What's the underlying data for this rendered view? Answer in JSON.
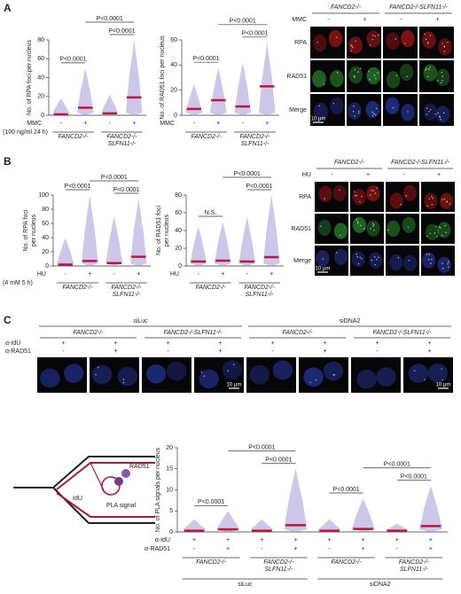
{
  "panels": {
    "A": {
      "label": "A",
      "image_header": {
        "groups": [
          "FANCD2-/-",
          "FANCD2-/-SLFN11-/-"
        ],
        "treatment": "MMC",
        "signs": [
          "-",
          "+",
          "-",
          "+"
        ]
      },
      "rows": [
        "RPA",
        "RAD51",
        "Merge"
      ],
      "scale": "10 µm"
    },
    "B": {
      "label": "B",
      "image_header": {
        "groups": [
          "FANCD2-/-",
          "FANCD2-/-SLFN11-/-"
        ],
        "treatment": "HU",
        "signs": [
          "-",
          "+",
          "-",
          "+"
        ]
      },
      "rows": [
        "RPA",
        "RAD51",
        "Merge"
      ],
      "scale": "10 µm"
    },
    "C": {
      "label": "C",
      "header": {
        "super_groups": [
          "siLuc",
          "siDNA2"
        ],
        "groups": [
          "FANCD2-/-",
          "FANCD2-/-SLFN11-/-",
          "FANCD2-/-",
          "FANCD2-/-SLFN11-/-"
        ],
        "rows": [
          {
            "name": "α-IdU",
            "values": [
              "+",
              "+",
              "+",
              "+",
              "+",
              "+",
              "+",
              "+"
            ]
          },
          {
            "name": "α-RAD51",
            "values": [
              "-",
              "+",
              "-",
              "+",
              "-",
              "+",
              "-",
              "+"
            ]
          }
        ]
      },
      "scale": "10 µm",
      "diagram": {
        "rad51": "RAD51",
        "idu": "IdU",
        "pla": "PLA signal"
      }
    }
  },
  "chart_data": [
    {
      "type": "strip",
      "y_label": [
        "No. of RPA foci per nucleus"
      ],
      "ylim": [
        0,
        80
      ],
      "yticks": [
        0,
        20,
        40,
        60,
        80
      ],
      "rows": [
        {
          "name": "MMC",
          "values": [
            "-",
            "+",
            "-",
            "+"
          ]
        }
      ],
      "note": "(100 ng/ml 24 h)",
      "groups": [
        [
          "FANCD2-/-"
        ],
        [
          "FANCD2-/-",
          "SLFN11-/-"
        ]
      ],
      "means": [
        1,
        8,
        2,
        19
      ],
      "max_values": [
        18,
        50,
        22,
        80
      ],
      "comparisons": [
        {
          "groups": [
            0,
            1
          ],
          "label": "P<0.0001"
        },
        {
          "groups": [
            2,
            3
          ],
          "label": "P<0.0001"
        },
        {
          "groups": [
            1,
            3
          ],
          "label": "P<0.0001"
        }
      ]
    },
    {
      "type": "strip",
      "y_label": [
        "No. of RAD51 foci per nucleus"
      ],
      "ylim": [
        0,
        60
      ],
      "yticks": [
        0,
        20,
        40,
        60
      ],
      "rows": [
        {
          "name": "MMC",
          "values": [
            "-",
            "+",
            "-",
            "+"
          ]
        }
      ],
      "groups": [
        [
          "FANCD2-/-"
        ],
        [
          "FANCD2-/-",
          "SLFN11-/-"
        ]
      ],
      "means": [
        5,
        12,
        7,
        23
      ],
      "max_values": [
        25,
        38,
        42,
        58
      ],
      "comparisons": [
        {
          "groups": [
            0,
            1
          ],
          "label": "P<0.0001"
        },
        {
          "groups": [
            2,
            3
          ],
          "label": "P<0.0001"
        },
        {
          "groups": [
            1,
            3
          ],
          "label": "P<0.0001"
        }
      ]
    },
    {
      "type": "strip",
      "y_label": [
        "No. of RPA foci",
        "per nucleus"
      ],
      "ylim": [
        0,
        100
      ],
      "yticks": [
        0,
        20,
        40,
        60,
        80,
        100
      ],
      "rows": [
        {
          "name": "HU",
          "values": [
            "-",
            "+",
            "-",
            "+"
          ]
        }
      ],
      "note": "(4 mM 5 h)",
      "groups": [
        [
          "FANCD2-/-"
        ],
        [
          "FANCD2-/-",
          "SLFN11-/-"
        ]
      ],
      "means": [
        2,
        7,
        4,
        13
      ],
      "max_values": [
        40,
        100,
        70,
        95
      ],
      "comparisons": [
        {
          "groups": [
            0,
            1
          ],
          "label": "P<0.0001"
        },
        {
          "groups": [
            2,
            3
          ],
          "label": "P<0.0001"
        },
        {
          "groups": [
            1,
            3
          ],
          "label": "P<0.0001"
        }
      ]
    },
    {
      "type": "strip",
      "y_label": [
        "No. of RAD51 foci",
        "per nucleus"
      ],
      "ylim": [
        0,
        80
      ],
      "yticks": [
        0,
        20,
        40,
        60,
        80
      ],
      "rows": [
        {
          "name": "HU",
          "values": [
            "-",
            "+",
            "-",
            "+"
          ]
        }
      ],
      "groups": [
        [
          "FANCD2-/-"
        ],
        [
          "FANCD2-/-",
          "SLFN11-/-"
        ]
      ],
      "means": [
        5,
        6,
        5,
        10
      ],
      "max_values": [
        45,
        50,
        55,
        80
      ],
      "comparisons": [
        {
          "groups": [
            0,
            1
          ],
          "label": "N.S."
        },
        {
          "groups": [
            2,
            3
          ],
          "label": "P<0.0001"
        },
        {
          "groups": [
            1,
            3
          ],
          "label": "P<0.0001"
        }
      ]
    },
    {
      "type": "strip",
      "y_label": [
        "No. of PLA signals per nucleus"
      ],
      "ylim": [
        0,
        20
      ],
      "yticks": [
        0,
        5,
        10,
        15,
        20
      ],
      "rows": [
        {
          "name": "α-IdU",
          "values": [
            "+",
            "+",
            "+",
            "+",
            "+",
            "+",
            "+",
            "+"
          ]
        },
        {
          "name": "α-RAD51",
          "values": [
            "-",
            "+",
            "-",
            "+",
            "-",
            "+",
            "-",
            "+"
          ]
        }
      ],
      "groups": [
        [
          "FANCD2-/-"
        ],
        [
          "FANCD2-/-",
          "SLFN11-/-"
        ],
        [
          "FANCD2-/-"
        ],
        [
          "FANCD2-/-",
          "SLFN11-/-"
        ]
      ],
      "super_groups": [
        "siLuc",
        "siDNA2"
      ],
      "means": [
        0.3,
        0.6,
        0.3,
        1.6,
        0.3,
        0.7,
        0.3,
        1.4
      ],
      "max_values": [
        3,
        5,
        3,
        15,
        3,
        8,
        2,
        11
      ],
      "comparisons": [
        {
          "groups": [
            0,
            1
          ],
          "label": "P<0.0001"
        },
        {
          "groups": [
            2,
            3
          ],
          "label": "P<0.0001"
        },
        {
          "groups": [
            1,
            3
          ],
          "label": "P<0.0001"
        },
        {
          "groups": [
            4,
            5
          ],
          "label": "P<0.0001"
        },
        {
          "groups": [
            6,
            7
          ],
          "label": "P<0.0001"
        },
        {
          "groups": [
            5,
            7
          ],
          "label": "P<0.0001"
        }
      ]
    }
  ]
}
